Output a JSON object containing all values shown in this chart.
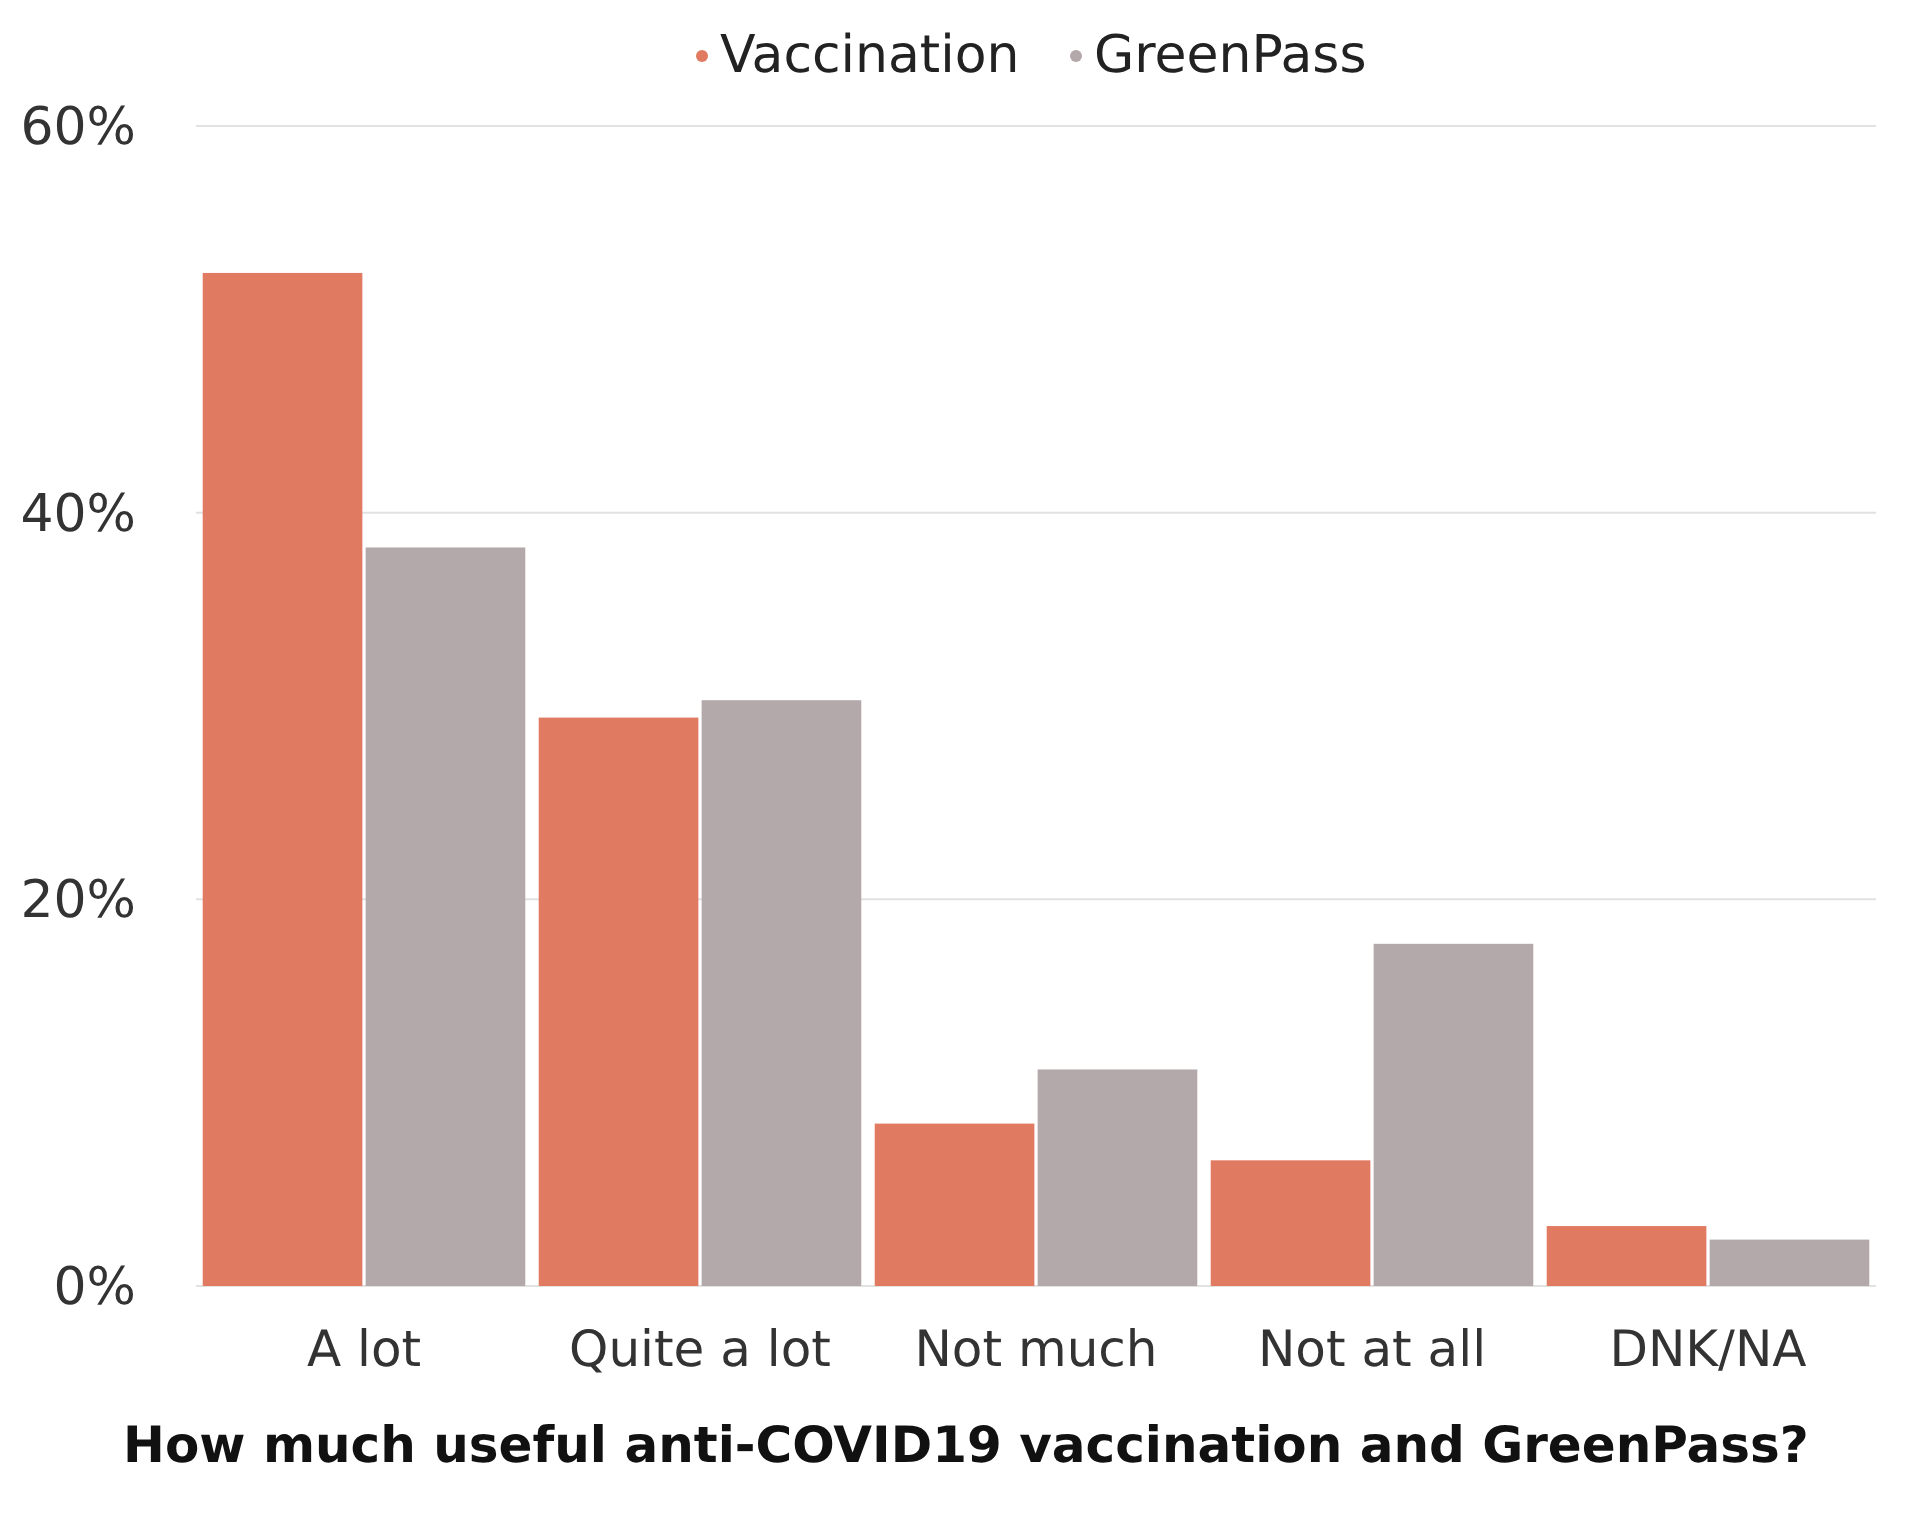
{
  "chart_data": {
    "type": "bar",
    "xlabel": "How much useful anti-COVID19 vaccination and GreenPass?",
    "categories": [
      "A lot",
      "Quite a lot",
      "Not much",
      "Not at all",
      "DNK/NA"
    ],
    "series": [
      {
        "name": "Vaccination",
        "color": "#e07a60",
        "values": [
          52.4,
          29.4,
          8.4,
          6.5,
          3.1
        ]
      },
      {
        "name": "GreenPass",
        "color": "#b3a8aa",
        "values": [
          38.2,
          30.3,
          11.2,
          17.7,
          2.4
        ]
      }
    ],
    "ylim": [
      0,
      60
    ],
    "yticks": [
      {
        "value": 0,
        "label": "0%"
      },
      {
        "value": 20,
        "label": "20%"
      },
      {
        "value": 40,
        "label": "40%"
      },
      {
        "value": 60,
        "label": "60%"
      }
    ],
    "grid": "y",
    "legend": "top"
  }
}
